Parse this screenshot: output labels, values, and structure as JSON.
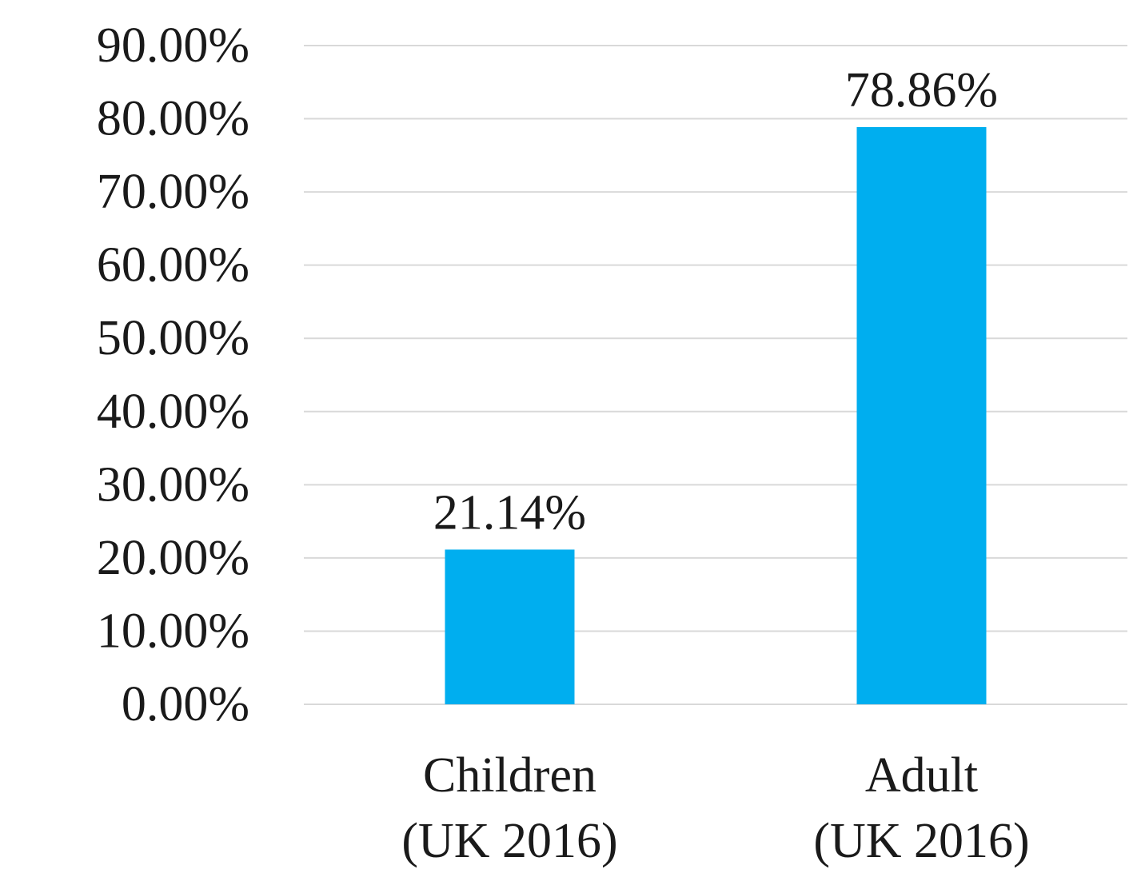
{
  "chart_data": {
    "type": "bar",
    "title": "",
    "xlabel": "",
    "ylabel": "",
    "categories": [
      [
        "Children",
        "(UK 2016)"
      ],
      [
        "Adult",
        "(UK 2016)"
      ]
    ],
    "values": [
      21.14,
      78.86
    ],
    "data_labels": [
      "21.14%",
      "78.86%"
    ],
    "ylim": [
      0,
      90
    ],
    "ytick_step": 10,
    "ytick_labels": [
      "0.00%",
      "10.00%",
      "20.00%",
      "30.00%",
      "40.00%",
      "50.00%",
      "60.00%",
      "70.00%",
      "80.00%",
      "90.00%"
    ],
    "bar_color": "#00AEEF",
    "gridline_color": "#D9D9D9",
    "grid": true,
    "legend": "none"
  }
}
